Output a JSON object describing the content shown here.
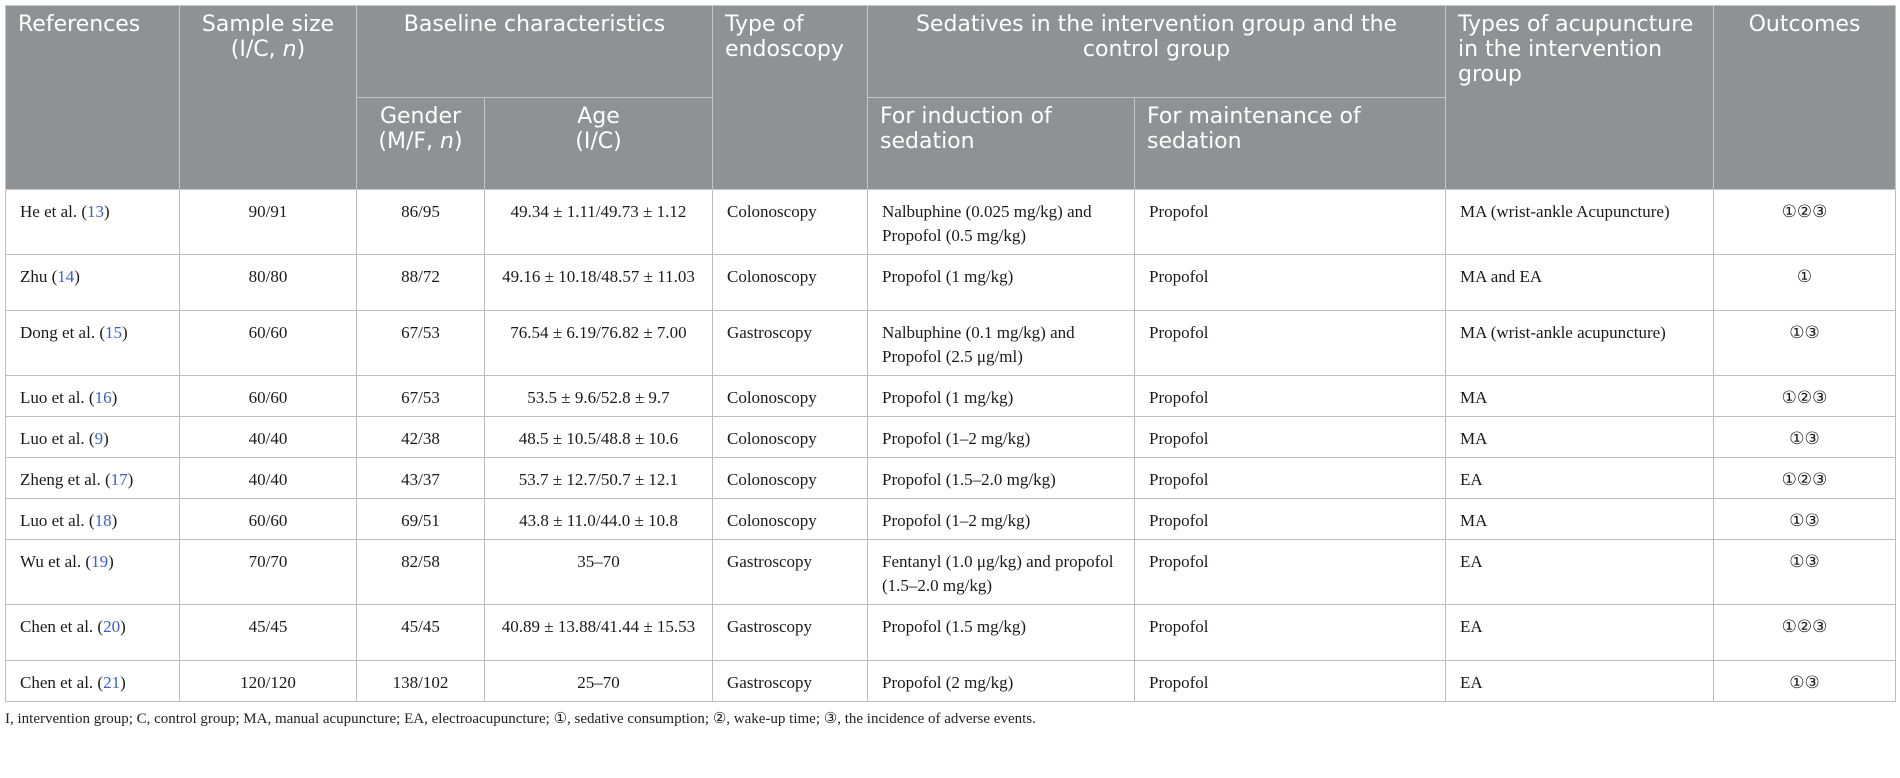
{
  "headers": {
    "references": "References",
    "sample_size_line1": "Sample size",
    "sample_size_prefix": "(I/C, ",
    "sample_size_n": "n",
    "sample_size_suffix": ")",
    "baseline": "Baseline characteristics",
    "gender_line1": "Gender",
    "gender_prefix": "(M/F, ",
    "gender_n": "n",
    "gender_suffix": ")",
    "age_line1": "Age",
    "age_line2": "(I/C)",
    "endoscopy": "Type of endoscopy",
    "sedatives": "Sedatives in the intervention group and the control group",
    "induction": "For induction of sedation",
    "maintenance": "For maintenance of sedation",
    "acupuncture": "Types of acupuncture in the intervention group",
    "outcomes": "Outcomes"
  },
  "rows": [
    {
      "ref": "He et al. (",
      "ref_num": "13",
      "ref_close": ")",
      "sample": "90/91",
      "gender": "86/95",
      "age": "49.34 ± 1.11/49.73 ± 1.12",
      "endoscopy": "Colonoscopy",
      "induction": "Nalbuphine (0.025 mg/kg) and Propofol (0.5 mg/kg)",
      "maintenance": "Propofol",
      "acupuncture": "MA (wrist-ankle Acupuncture)",
      "outcomes": "①②③"
    },
    {
      "ref": "Zhu (",
      "ref_num": "14",
      "ref_close": ")",
      "sample": "80/80",
      "gender": "88/72",
      "age": "49.16 ± 10.18/48.57 ± 11.03",
      "endoscopy": "Colonoscopy",
      "induction": "Propofol (1 mg/kg)",
      "maintenance": "Propofol",
      "acupuncture": "MA and EA",
      "outcomes": "①"
    },
    {
      "ref": "Dong et al. (",
      "ref_num": "15",
      "ref_close": ")",
      "sample": "60/60",
      "gender": "67/53",
      "age": "76.54 ± 6.19/76.82 ± 7.00",
      "endoscopy": "Gastroscopy",
      "induction": "Nalbuphine (0.1 mg/kg) and Propofol (2.5 μg/ml)",
      "maintenance": "Propofol",
      "acupuncture": "MA (wrist-ankle acupuncture)",
      "outcomes": "①③"
    },
    {
      "ref": "Luo et al. (",
      "ref_num": "16",
      "ref_close": ")",
      "sample": "60/60",
      "gender": "67/53",
      "age": "53.5 ± 9.6/52.8 ± 9.7",
      "endoscopy": "Colonoscopy",
      "induction": "Propofol (1 mg/kg)",
      "maintenance": "Propofol",
      "acupuncture": "MA",
      "outcomes": "①②③"
    },
    {
      "ref": "Luo et al. (",
      "ref_num": "9",
      "ref_close": ")",
      "sample": "40/40",
      "gender": "42/38",
      "age": "48.5 ± 10.5/48.8 ± 10.6",
      "endoscopy": "Colonoscopy",
      "induction": "Propofol (1–2 mg/kg)",
      "maintenance": "Propofol",
      "acupuncture": "MA",
      "outcomes": "①③"
    },
    {
      "ref": "Zheng et al. (",
      "ref_num": "17",
      "ref_close": ")",
      "sample": "40/40",
      "gender": "43/37",
      "age": "53.7 ± 12.7/50.7 ± 12.1",
      "endoscopy": "Colonoscopy",
      "induction": "Propofol (1.5–2.0 mg/kg)",
      "maintenance": "Propofol",
      "acupuncture": "EA",
      "outcomes": "①②③"
    },
    {
      "ref": "Luo et al. (",
      "ref_num": "18",
      "ref_close": ")",
      "sample": "60/60",
      "gender": "69/51",
      "age": "43.8 ± 11.0/44.0 ± 10.8",
      "endoscopy": "Colonoscopy",
      "induction": "Propofol (1–2 mg/kg)",
      "maintenance": "Propofol",
      "acupuncture": "MA",
      "outcomes": "①③"
    },
    {
      "ref": "Wu et al. (",
      "ref_num": "19",
      "ref_close": ")",
      "sample": "70/70",
      "gender": "82/58",
      "age": "35–70",
      "endoscopy": "Gastroscopy",
      "induction": "Fentanyl (1.0 μg/kg) and propofol (1.5–2.0 mg/kg)",
      "maintenance": "Propofol",
      "acupuncture": "EA",
      "outcomes": "①③"
    },
    {
      "ref": "Chen et al. (",
      "ref_num": "20",
      "ref_close": ")",
      "sample": "45/45",
      "gender": "45/45",
      "age": "40.89 ± 13.88/41.44 ± 15.53",
      "endoscopy": "Gastroscopy",
      "induction": "Propofol (1.5 mg/kg)",
      "maintenance": "Propofol",
      "acupuncture": "EA",
      "outcomes": "①②③"
    },
    {
      "ref": "Chen et al. (",
      "ref_num": "21",
      "ref_close": ")",
      "sample": "120/120",
      "gender": "138/102",
      "age": "25–70",
      "endoscopy": "Gastroscopy",
      "induction": "Propofol (2 mg/kg)",
      "maintenance": "Propofol",
      "acupuncture": "EA",
      "outcomes": "①③"
    }
  ],
  "footnote": "I, intervention group; C, control group; MA, manual acupuncture; EA, electroacupuncture; ①, sedative consumption; ②, wake-up time; ③, the incidence of adverse events.",
  "colors": {
    "header_bg": "#8e9294",
    "header_text": "#ffffff",
    "ref_link": "#3a5fcd",
    "border": "#bdbdbd"
  }
}
